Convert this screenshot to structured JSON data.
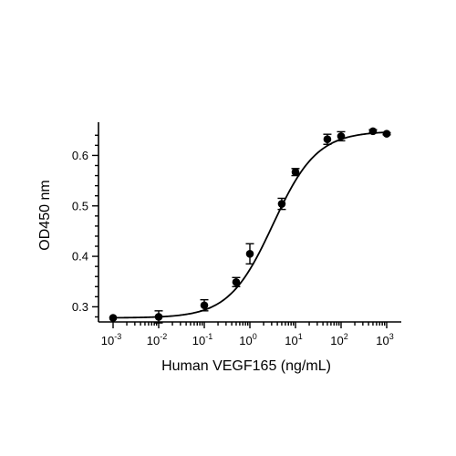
{
  "chart_data": {
    "type": "scatter",
    "xlabel": "Human VEGF165 (ng/mL)",
    "ylabel": "OD450 nm",
    "x_scale": "log",
    "xlim": [
      0.001,
      1000
    ],
    "ylim": [
      0.27,
      0.655
    ],
    "x_ticks": [
      {
        "base": "10",
        "exp": "-3"
      },
      {
        "base": "10",
        "exp": "-2"
      },
      {
        "base": "10",
        "exp": "-1"
      },
      {
        "base": "10",
        "exp": "0"
      },
      {
        "base": "10",
        "exp": "1"
      },
      {
        "base": "10",
        "exp": "2"
      },
      {
        "base": "10",
        "exp": "3"
      }
    ],
    "y_ticks": [
      "0.3",
      "0.4",
      "0.5",
      "0.6"
    ],
    "grid": false,
    "series": [
      {
        "points": [
          {
            "x": 0.001,
            "y": 0.278,
            "err": 0.0
          },
          {
            "x": 0.01,
            "y": 0.28,
            "err": 0.012
          },
          {
            "x": 0.1,
            "y": 0.303,
            "err": 0.011
          },
          {
            "x": 0.5,
            "y": 0.349,
            "err": 0.009
          },
          {
            "x": 1,
            "y": 0.405,
            "err": 0.02
          },
          {
            "x": 5,
            "y": 0.504,
            "err": 0.011
          },
          {
            "x": 10,
            "y": 0.567,
            "err": 0.007
          },
          {
            "x": 50,
            "y": 0.632,
            "err": 0.01
          },
          {
            "x": 100,
            "y": 0.638,
            "err": 0.009
          },
          {
            "x": 500,
            "y": 0.648,
            "err": 0.003
          },
          {
            "x": 1000,
            "y": 0.643,
            "err": 0.002
          }
        ],
        "fit": {
          "model": "4PL",
          "bottom": 0.278,
          "top": 0.648,
          "ec50": 3.2,
          "hill": 0.9
        }
      }
    ]
  }
}
